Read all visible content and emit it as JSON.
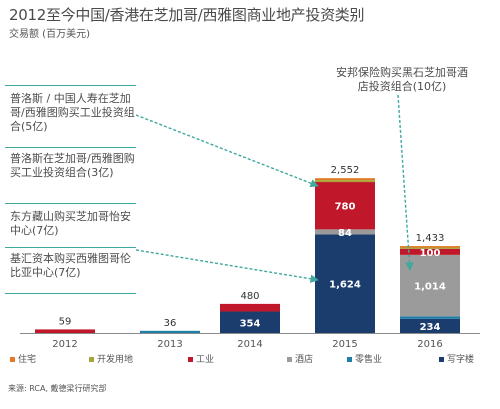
{
  "header": {
    "title": "2012至今中国/香港在芝加哥/西雅图商业地产投资类别",
    "subtitle": "交易额 (百万美元)"
  },
  "annotations": {
    "left": [
      "普洛斯 / 中国人寿在芝加哥/西雅图购买工业投资组合(5亿)",
      "普洛斯在芝加哥/西雅图购买工业投资组合(3亿)",
      "东方藏山购买芝加哥怡安中心(7亿)",
      "基汇资本购买西雅图哥伦比亚中心(7亿)"
    ],
    "top": "安邦保险购买黑石芝加哥酒店投资组合(10亿)"
  },
  "source": "来源: RCA, 戴德梁行研究部",
  "chart_data": {
    "type": "bar",
    "stacked": true,
    "categories": [
      "2012",
      "2013",
      "2014",
      "2015",
      "2016"
    ],
    "ylim": [
      0,
      2700
    ],
    "series": [
      {
        "name": "写字楼",
        "color": "#1b3d6e",
        "values": [
          0,
          0,
          354,
          1624,
          234
        ]
      },
      {
        "name": "零售业",
        "color": "#1f7ea8",
        "values": [
          0,
          36,
          0,
          0,
          40
        ]
      },
      {
        "name": "酒店",
        "color": "#9b9b9b",
        "values": [
          0,
          0,
          0,
          84,
          1014
        ]
      },
      {
        "name": "工业",
        "color": "#c0182a",
        "values": [
          59,
          0,
          126,
          780,
          100
        ]
      },
      {
        "name": "开发用地",
        "color": "#a4a737",
        "values": [
          0,
          0,
          0,
          32,
          30
        ]
      },
      {
        "name": "住宅",
        "color": "#e27a2a",
        "values": [
          0,
          0,
          0,
          32,
          15
        ]
      }
    ],
    "totals": [
      "59",
      "36",
      "480",
      "2,552",
      "1,433"
    ],
    "segment_labels": [
      {
        "category": "2014",
        "series": "写字楼",
        "text": "354"
      },
      {
        "category": "2015",
        "series": "写字楼",
        "text": "1,624"
      },
      {
        "category": "2015",
        "series": "酒店",
        "text": "84"
      },
      {
        "category": "2015",
        "series": "工业",
        "text": "780"
      },
      {
        "category": "2016",
        "series": "写字楼",
        "text": "234"
      },
      {
        "category": "2016",
        "series": "酒店",
        "text": "1,014"
      },
      {
        "category": "2016",
        "series": "工业",
        "text": "100"
      }
    ],
    "legend": [
      "住宅",
      "开发用地",
      "工业",
      "酒店",
      "零售业",
      "写字楼"
    ],
    "legend_colors": [
      "#e27a2a",
      "#a4a737",
      "#c0182a",
      "#9b9b9b",
      "#1f7ea8",
      "#1b3d6e"
    ],
    "arrow_color": "#3fa99e"
  }
}
